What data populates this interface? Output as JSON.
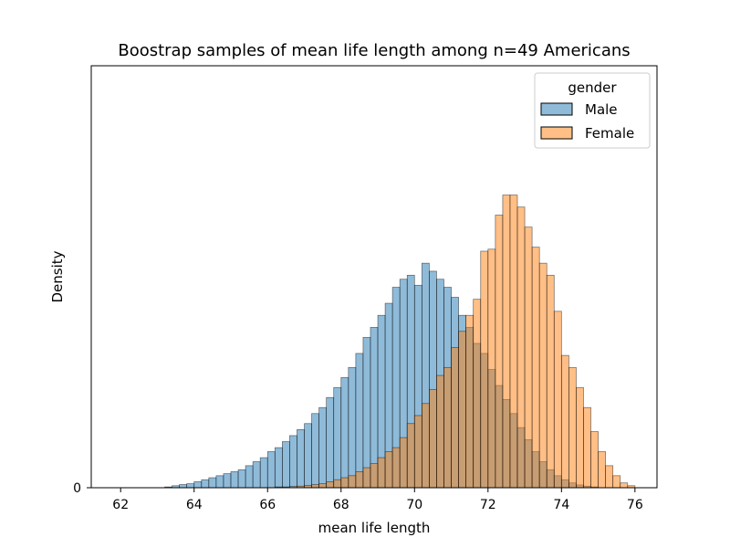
{
  "chart_data": {
    "type": "histogram",
    "title": "Boostrap samples of mean life length among n=49 Americans",
    "xlabel": "mean life length",
    "ylabel": "Density",
    "xlim": [
      61.2,
      76.6
    ],
    "ylim": [
      0,
      1.0
    ],
    "xticks": [
      62,
      64,
      66,
      68,
      70,
      72,
      74,
      76
    ],
    "xtick_labels": [
      "62",
      "64",
      "66",
      "68",
      "70",
      "72",
      "74",
      "76"
    ],
    "yticks": [
      0
    ],
    "ytick_labels": [
      "0"
    ],
    "bin_width": 0.2,
    "legend": {
      "title": "gender",
      "position": "top-right",
      "entries": [
        "Male",
        "Female"
      ]
    },
    "series": [
      {
        "name": "Male",
        "color": "#1f77b4",
        "bins": [
          [
            61.8,
            0.0
          ],
          [
            62.0,
            0.0
          ],
          [
            62.2,
            0.0
          ],
          [
            62.4,
            0.0
          ],
          [
            62.6,
            0.0
          ],
          [
            62.8,
            0.0
          ],
          [
            63.0,
            0.0
          ],
          [
            63.2,
            0.002
          ],
          [
            63.4,
            0.005
          ],
          [
            63.6,
            0.008
          ],
          [
            63.8,
            0.01
          ],
          [
            64.0,
            0.015
          ],
          [
            64.2,
            0.02
          ],
          [
            64.4,
            0.025
          ],
          [
            64.6,
            0.03
          ],
          [
            64.8,
            0.035
          ],
          [
            65.0,
            0.04
          ],
          [
            65.2,
            0.045
          ],
          [
            65.4,
            0.055
          ],
          [
            65.6,
            0.065
          ],
          [
            65.8,
            0.075
          ],
          [
            66.0,
            0.09
          ],
          [
            66.2,
            0.1
          ],
          [
            66.4,
            0.115
          ],
          [
            66.6,
            0.13
          ],
          [
            66.8,
            0.145
          ],
          [
            67.0,
            0.16
          ],
          [
            67.2,
            0.185
          ],
          [
            67.4,
            0.2
          ],
          [
            67.6,
            0.225
          ],
          [
            67.8,
            0.25
          ],
          [
            68.0,
            0.275
          ],
          [
            68.2,
            0.3
          ],
          [
            68.4,
            0.335
          ],
          [
            68.6,
            0.375
          ],
          [
            68.8,
            0.4
          ],
          [
            69.0,
            0.43
          ],
          [
            69.2,
            0.46
          ],
          [
            69.4,
            0.5
          ],
          [
            69.6,
            0.52
          ],
          [
            69.8,
            0.53
          ],
          [
            70.0,
            0.505
          ],
          [
            70.2,
            0.56
          ],
          [
            70.4,
            0.54
          ],
          [
            70.6,
            0.52
          ],
          [
            70.8,
            0.5
          ],
          [
            71.0,
            0.475
          ],
          [
            71.2,
            0.43
          ],
          [
            71.4,
            0.4
          ],
          [
            71.6,
            0.36
          ],
          [
            71.8,
            0.335
          ],
          [
            72.0,
            0.295
          ],
          [
            72.2,
            0.255
          ],
          [
            72.4,
            0.22
          ],
          [
            72.6,
            0.185
          ],
          [
            72.8,
            0.15
          ],
          [
            73.0,
            0.12
          ],
          [
            73.2,
            0.09
          ],
          [
            73.4,
            0.065
          ],
          [
            73.6,
            0.045
          ],
          [
            73.8,
            0.03
          ],
          [
            74.0,
            0.02
          ],
          [
            74.2,
            0.012
          ],
          [
            74.4,
            0.007
          ],
          [
            74.6,
            0.004
          ],
          [
            74.8,
            0.002
          ]
        ]
      },
      {
        "name": "Female",
        "color": "#ff7f0e",
        "bins": [
          [
            66.2,
            0.002
          ],
          [
            66.4,
            0.002
          ],
          [
            66.6,
            0.003
          ],
          [
            66.8,
            0.004
          ],
          [
            67.0,
            0.006
          ],
          [
            67.2,
            0.008
          ],
          [
            67.4,
            0.01
          ],
          [
            67.6,
            0.015
          ],
          [
            67.8,
            0.02
          ],
          [
            68.0,
            0.025
          ],
          [
            68.2,
            0.03
          ],
          [
            68.4,
            0.04
          ],
          [
            68.6,
            0.05
          ],
          [
            68.8,
            0.06
          ],
          [
            69.0,
            0.075
          ],
          [
            69.2,
            0.09
          ],
          [
            69.4,
            0.1
          ],
          [
            69.6,
            0.125
          ],
          [
            69.8,
            0.16
          ],
          [
            70.0,
            0.18
          ],
          [
            70.2,
            0.21
          ],
          [
            70.4,
            0.245
          ],
          [
            70.6,
            0.28
          ],
          [
            70.8,
            0.3
          ],
          [
            71.0,
            0.35
          ],
          [
            71.2,
            0.39
          ],
          [
            71.4,
            0.43
          ],
          [
            71.6,
            0.47
          ],
          [
            71.8,
            0.59
          ],
          [
            72.0,
            0.595
          ],
          [
            72.2,
            0.68
          ],
          [
            72.4,
            0.73
          ],
          [
            72.6,
            0.73
          ],
          [
            72.8,
            0.7
          ],
          [
            73.0,
            0.65
          ],
          [
            73.2,
            0.6
          ],
          [
            73.4,
            0.56
          ],
          [
            73.6,
            0.53
          ],
          [
            73.8,
            0.44
          ],
          [
            74.0,
            0.33
          ],
          [
            74.2,
            0.3
          ],
          [
            74.4,
            0.25
          ],
          [
            74.6,
            0.2
          ],
          [
            74.8,
            0.14
          ],
          [
            75.0,
            0.09
          ],
          [
            75.2,
            0.055
          ],
          [
            75.4,
            0.03
          ],
          [
            75.6,
            0.012
          ],
          [
            75.8,
            0.005
          ]
        ]
      }
    ]
  }
}
